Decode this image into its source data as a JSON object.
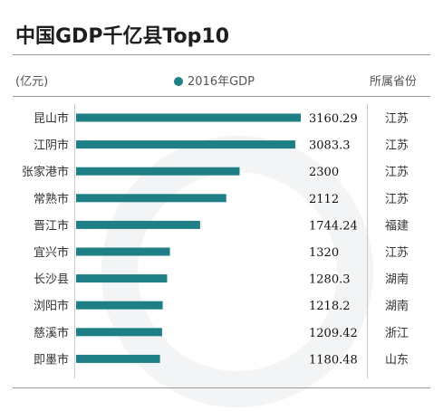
{
  "title": "中国GDP千亿县Top10",
  "header": {
    "unit": "(亿元)",
    "legend_label": "2016年GDP",
    "province_header": "所属省份"
  },
  "colors": {
    "bar": "#1f7f86",
    "rule": "#9a9a9a"
  },
  "chart_data": {
    "type": "bar",
    "orientation": "horizontal",
    "title": "中国GDP千亿县Top10",
    "unit": "(亿元)",
    "categories": [
      "昆山市",
      "江阴市",
      "张家港市",
      "常熟市",
      "晋江市",
      "宜兴市",
      "长沙县",
      "浏阳市",
      "慈溪市",
      "即墨市"
    ],
    "series": [
      {
        "name": "2016年GDP",
        "values": [
          3160.29,
          3083.3,
          2300,
          2112,
          1744.24,
          1320,
          1280.3,
          1218.2,
          1209.42,
          1180.48
        ],
        "labels": [
          "3160.29",
          "3083.3",
          "2300",
          "2112",
          "1744.24",
          "1320",
          "1280.3",
          "1218.2",
          "1209.42",
          "1180.48"
        ]
      }
    ],
    "provinces": [
      "江苏",
      "江苏",
      "江苏",
      "江苏",
      "福建",
      "江苏",
      "湖南",
      "湖南",
      "浙江",
      "山东"
    ],
    "province_header": "所属省份",
    "legend": "top-center",
    "grid": false
  }
}
